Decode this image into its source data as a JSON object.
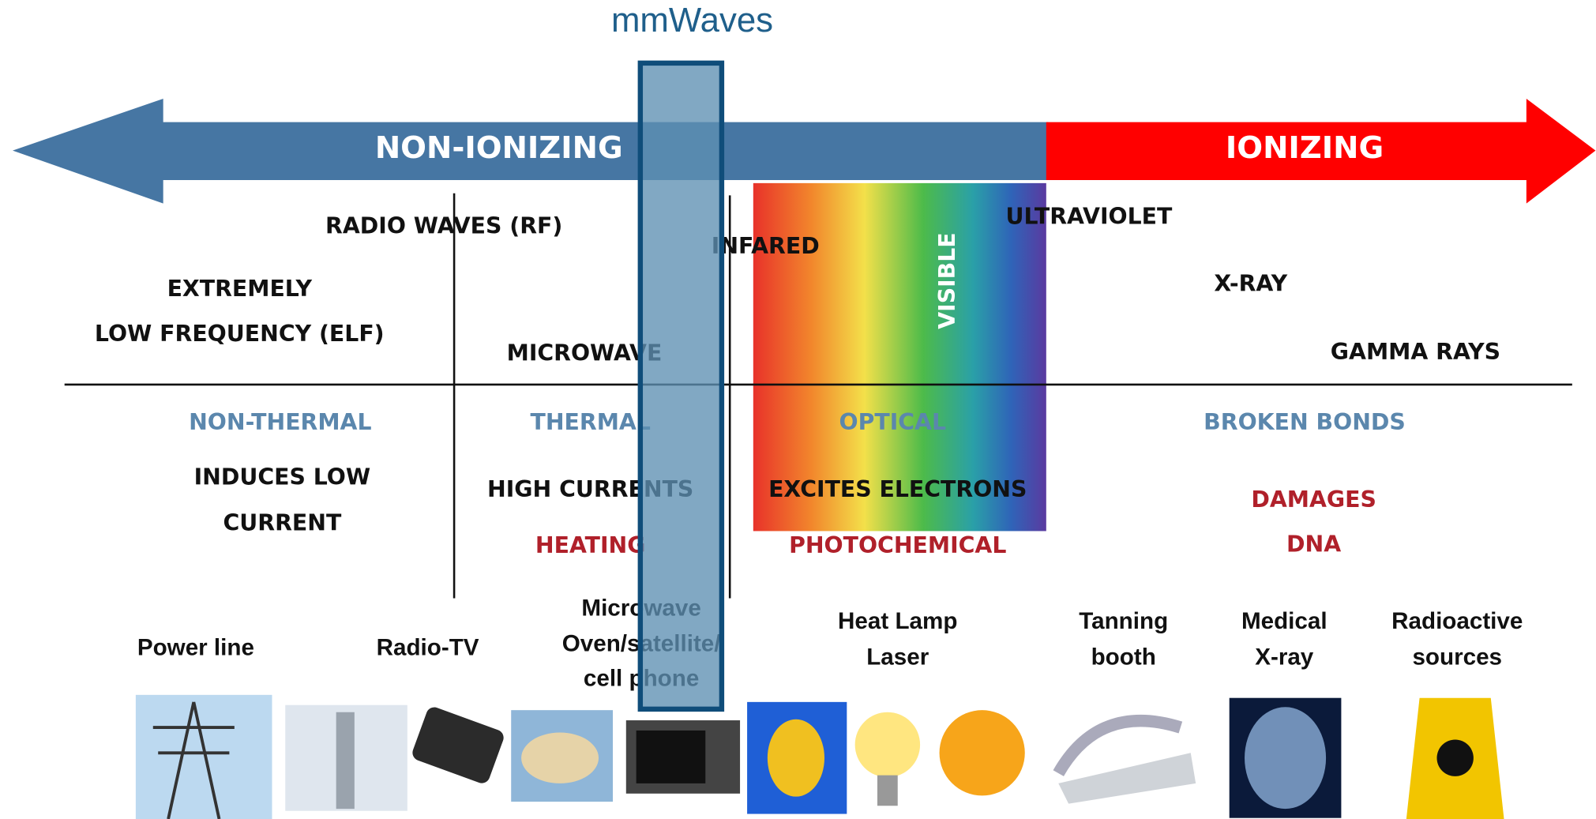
{
  "highlight": {
    "label": "mmWaves"
  },
  "arrow": {
    "left": "NON-IONIZING",
    "right": "IONIZING"
  },
  "bands": {
    "radio": "RADIO WAVES (RF)",
    "infrared": "INFARED",
    "visible": "VISIBLE",
    "ultraviolet": "ULTRAVIOLET",
    "elf": [
      "EXTREMELY",
      "LOW FREQUENCY (ELF)"
    ],
    "microwave": "MICROWAVE",
    "xray": "X-RAY",
    "gamma": "GAMMA RAYS"
  },
  "effects": {
    "kind": [
      "NON-THERMAL",
      "THERMAL",
      "OPTICAL",
      "BROKEN BONDS"
    ],
    "low_current": [
      "INDUCES LOW",
      "CURRENT"
    ],
    "high_currents": "HIGH CURRENTS",
    "excites": "EXCITES ELECTRONS",
    "damages": [
      "DAMAGES",
      "DNA"
    ],
    "heating": "HEATING",
    "photochemical": "PHOTOCHEMICAL"
  },
  "sources": [
    [
      "Power line"
    ],
    [
      "Radio-TV"
    ],
    [
      "Microwave",
      "Oven/satellite/",
      "cell phone"
    ],
    [
      "Heat Lamp",
      "Laser"
    ],
    [
      "Tanning",
      "booth"
    ],
    [
      "Medical",
      "X-ray"
    ],
    [
      "Radioactive",
      "sources"
    ]
  ]
}
